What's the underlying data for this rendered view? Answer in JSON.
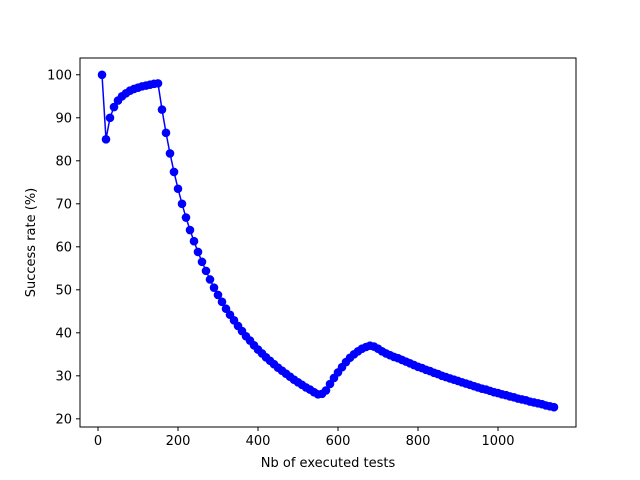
{
  "chart_data": {
    "type": "line",
    "title": "",
    "xlabel": "Nb of executed tests",
    "ylabel": "Success rate (%)",
    "xlim": [
      -45,
      1195
    ],
    "ylim": [
      18.1,
      103.9
    ],
    "xticks": [
      0,
      200,
      400,
      600,
      800,
      1000
    ],
    "yticks": [
      20,
      30,
      40,
      50,
      60,
      70,
      80,
      90,
      100
    ],
    "grid": false,
    "marker": "circle",
    "color": "#0000ff",
    "series": [
      {
        "x": [
          10,
          20,
          30,
          40,
          50,
          60,
          70,
          80,
          90,
          100,
          110,
          120,
          130,
          140,
          150,
          160,
          170,
          180,
          190,
          200,
          210,
          220,
          230,
          240,
          250,
          260,
          270,
          280,
          290,
          300,
          310,
          320,
          330,
          340,
          350,
          360,
          370,
          380,
          390,
          400,
          410,
          420,
          430,
          440,
          450,
          460,
          470,
          480,
          490,
          500,
          510,
          520,
          530,
          540,
          550,
          560,
          570,
          580,
          590,
          600,
          610,
          620,
          630,
          640,
          650,
          660,
          670,
          680,
          690,
          700,
          710,
          720,
          730,
          740,
          750,
          760,
          770,
          780,
          790,
          800,
          810,
          820,
          830,
          840,
          850,
          860,
          870,
          880,
          890,
          900,
          910,
          920,
          930,
          940,
          950,
          960,
          970,
          980,
          990,
          1000,
          1010,
          1020,
          1030,
          1040,
          1050,
          1060,
          1070,
          1080,
          1090,
          1100,
          1110,
          1120,
          1130,
          1140
        ],
        "y": [
          100,
          85,
          90,
          92.5,
          94,
          95,
          95.7,
          96.3,
          96.7,
          97,
          97.3,
          97.5,
          97.7,
          97.9,
          98,
          91.9,
          86.5,
          81.7,
          77.4,
          73.5,
          70,
          66.8,
          63.9,
          61.3,
          58.8,
          56.5,
          54.4,
          52.4,
          50.5,
          48.8,
          47.2,
          45.6,
          44.2,
          42.9,
          41.6,
          40.4,
          39.2,
          38.2,
          37.1,
          36.1,
          35.2,
          34.3,
          33.5,
          32.7,
          31.9,
          31.2,
          30.5,
          29.8,
          29.1,
          28.5,
          27.9,
          27.3,
          26.8,
          26.2,
          25.7,
          25.8,
          26.6,
          28.1,
          29.5,
          30.8,
          32,
          33.2,
          34.2,
          35,
          35.7,
          36.3,
          36.7,
          37,
          36.8,
          36.3,
          35.7,
          35.2,
          34.8,
          34.4,
          34.1,
          33.7,
          33.3,
          32.9,
          32.5,
          32.1,
          31.8,
          31.4,
          31.1,
          30.7,
          30.4,
          30,
          29.7,
          29.4,
          29.1,
          28.8,
          28.5,
          28.2,
          27.9,
          27.6,
          27.3,
          27,
          26.8,
          26.5,
          26.2,
          26,
          25.7,
          25.5,
          25.2,
          25,
          24.7,
          24.5,
          24.3,
          24,
          23.8,
          23.6,
          23.4,
          23.1,
          22.9,
          22.7
        ]
      }
    ]
  }
}
